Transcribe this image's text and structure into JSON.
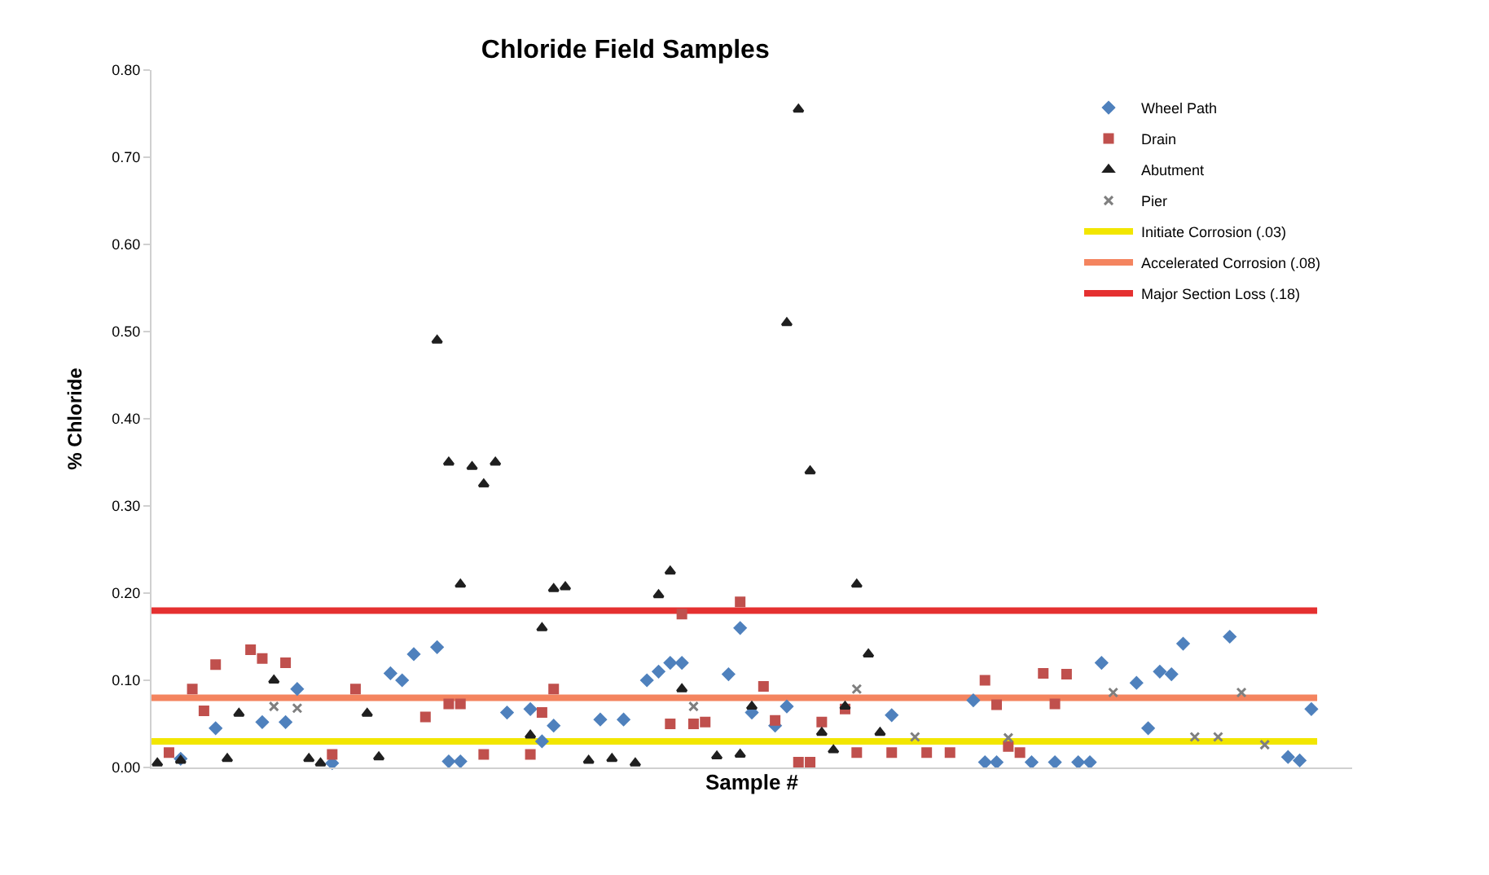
{
  "chart_data": {
    "type": "scatter",
    "title": "Chloride Field Samples",
    "xlabel": "Sample #",
    "ylabel": "% Chloride",
    "categories": [
      null,
      null,
      null,
      null,
      null,
      null,
      null,
      null,
      null,
      null,
      null,
      null,
      null,
      null,
      null,
      null,
      null,
      null,
      null,
      null,
      null,
      null,
      null,
      null,
      null,
      null,
      null,
      null,
      null,
      null,
      null,
      null,
      null,
      null,
      null,
      null,
      null,
      null,
      null,
      null,
      null,
      null,
      null,
      null,
      null,
      null,
      null,
      null,
      null,
      null,
      null,
      null,
      null,
      null,
      null,
      null,
      null,
      null,
      null,
      null,
      null,
      null,
      null,
      null,
      null,
      null,
      null,
      null,
      null,
      null,
      null,
      null,
      null,
      null,
      null,
      null,
      null,
      null,
      null,
      null,
      null,
      null,
      null,
      null,
      null,
      null,
      null,
      null,
      null,
      null,
      null,
      null,
      null,
      null,
      null,
      null,
      null,
      null,
      null,
      null
    ],
    "series": [
      {
        "name": "Wheel Path",
        "color": "#4f81bd",
        "marker": "diamond",
        "values": [
          null,
          null,
          0.01,
          null,
          null,
          0.045,
          null,
          null,
          null,
          0.052,
          null,
          0.052,
          0.09,
          null,
          null,
          0.005,
          null,
          null,
          null,
          null,
          0.108,
          0.1,
          0.13,
          null,
          0.138,
          0.007,
          0.007,
          null,
          null,
          null,
          0.063,
          null,
          0.067,
          0.03,
          0.048,
          null,
          null,
          null,
          0.055,
          null,
          0.055,
          null,
          0.1,
          0.11,
          0.12,
          0.12,
          null,
          null,
          null,
          0.107,
          0.16,
          0.063,
          null,
          0.048,
          0.07,
          null,
          null,
          null,
          null,
          null,
          null,
          null,
          null,
          0.06,
          null,
          null,
          null,
          null,
          null,
          null,
          0.077,
          0.006,
          0.006,
          null,
          null,
          0.006,
          null,
          0.006,
          null,
          0.006,
          0.006,
          0.12,
          null,
          null,
          0.097,
          0.045,
          0.11,
          0.107,
          0.142,
          null,
          null,
          null,
          0.15,
          null,
          null,
          null,
          null,
          0.012,
          0.008,
          0.067
        ]
      },
      {
        "name": "Drain",
        "color": "#c0504d",
        "marker": "square",
        "values": [
          null,
          0.017,
          null,
          0.09,
          0.065,
          0.118,
          null,
          null,
          0.135,
          0.125,
          null,
          0.12,
          null,
          null,
          null,
          0.015,
          null,
          0.09,
          null,
          null,
          null,
          null,
          null,
          0.058,
          null,
          0.073,
          0.073,
          null,
          0.015,
          null,
          null,
          null,
          0.015,
          0.063,
          0.09,
          null,
          null,
          null,
          null,
          null,
          null,
          null,
          null,
          null,
          0.05,
          0.176,
          0.05,
          0.052,
          null,
          null,
          0.19,
          null,
          0.093,
          0.054,
          null,
          0.006,
          0.006,
          0.052,
          null,
          0.067,
          0.017,
          null,
          null,
          0.017,
          null,
          null,
          0.017,
          null,
          0.017,
          null,
          null,
          0.1,
          0.072,
          0.024,
          0.017,
          null,
          0.108,
          0.073,
          0.107,
          null,
          null,
          null,
          null,
          null,
          null,
          null,
          null,
          null,
          null,
          null,
          null,
          null,
          null,
          null,
          null,
          null,
          null,
          null,
          null,
          null
        ]
      },
      {
        "name": "Abutment",
        "color": "#1f1f1f",
        "marker": "triangle",
        "values": [
          0.005,
          null,
          0.008,
          null,
          null,
          null,
          0.01,
          0.062,
          null,
          null,
          0.1,
          null,
          null,
          0.01,
          0.005,
          null,
          null,
          null,
          0.062,
          0.012,
          null,
          null,
          null,
          null,
          0.49,
          0.35,
          0.21,
          0.345,
          0.325,
          0.35,
          null,
          null,
          0.037,
          0.16,
          0.205,
          0.207,
          null,
          0.008,
          null,
          0.01,
          null,
          0.005,
          null,
          0.198,
          0.225,
          0.09,
          null,
          null,
          0.013,
          null,
          0.015,
          0.07,
          null,
          null,
          0.51,
          0.755,
          0.34,
          0.04,
          0.02,
          0.07,
          0.21,
          0.13,
          0.04,
          null,
          null,
          null,
          null,
          null,
          null,
          null,
          null,
          null,
          null,
          null,
          null,
          null,
          null,
          null,
          null,
          null,
          null,
          null,
          null,
          null,
          null,
          null,
          null,
          null,
          null,
          null,
          null,
          null,
          null,
          null,
          null,
          null,
          null,
          null,
          null,
          null
        ]
      },
      {
        "name": "Pier",
        "color": "#7f7f7f",
        "marker": "cross",
        "values": [
          null,
          null,
          null,
          null,
          null,
          null,
          null,
          null,
          null,
          null,
          0.07,
          null,
          0.068,
          null,
          null,
          null,
          null,
          null,
          null,
          null,
          null,
          null,
          null,
          null,
          null,
          null,
          null,
          null,
          null,
          null,
          null,
          null,
          null,
          null,
          null,
          null,
          null,
          null,
          null,
          null,
          null,
          null,
          null,
          null,
          null,
          null,
          0.07,
          null,
          null,
          null,
          null,
          null,
          null,
          null,
          null,
          null,
          null,
          null,
          null,
          null,
          0.09,
          null,
          null,
          null,
          null,
          0.035,
          null,
          null,
          null,
          null,
          null,
          null,
          null,
          0.034,
          null,
          null,
          null,
          null,
          null,
          null,
          null,
          null,
          0.086,
          null,
          null,
          null,
          null,
          null,
          null,
          0.035,
          null,
          0.035,
          null,
          0.086,
          null,
          0.026,
          null,
          null,
          null,
          null
        ]
      }
    ],
    "ref_lines": [
      {
        "axis": "y",
        "value": 0.03,
        "label": "Initiate Corrosion (.03)",
        "color": "#f2e600"
      },
      {
        "axis": "y",
        "value": 0.08,
        "label": "Accelerated Corrosion (.08)",
        "color": "#f4845f"
      },
      {
        "axis": "y",
        "value": 0.18,
        "label": "Major Section Loss (.18)",
        "color": "#e53030"
      }
    ],
    "ylim": [
      0,
      0.8
    ],
    "yticks": [
      {
        "value": 0,
        "label": "0.00"
      },
      {
        "value": 0.1,
        "label": "0.10"
      },
      {
        "value": 0.2,
        "label": "0.20"
      },
      {
        "value": 0.3,
        "label": "0.30"
      },
      {
        "value": 0.4,
        "label": "0.40"
      },
      {
        "value": 0.5,
        "label": "0.50"
      },
      {
        "value": 0.6,
        "label": "0.60"
      },
      {
        "value": 0.7,
        "label": "0.70"
      },
      {
        "value": 0.8,
        "label": "0.80"
      }
    ],
    "tick_labels": "y",
    "grid": false,
    "legend": "top right"
  }
}
